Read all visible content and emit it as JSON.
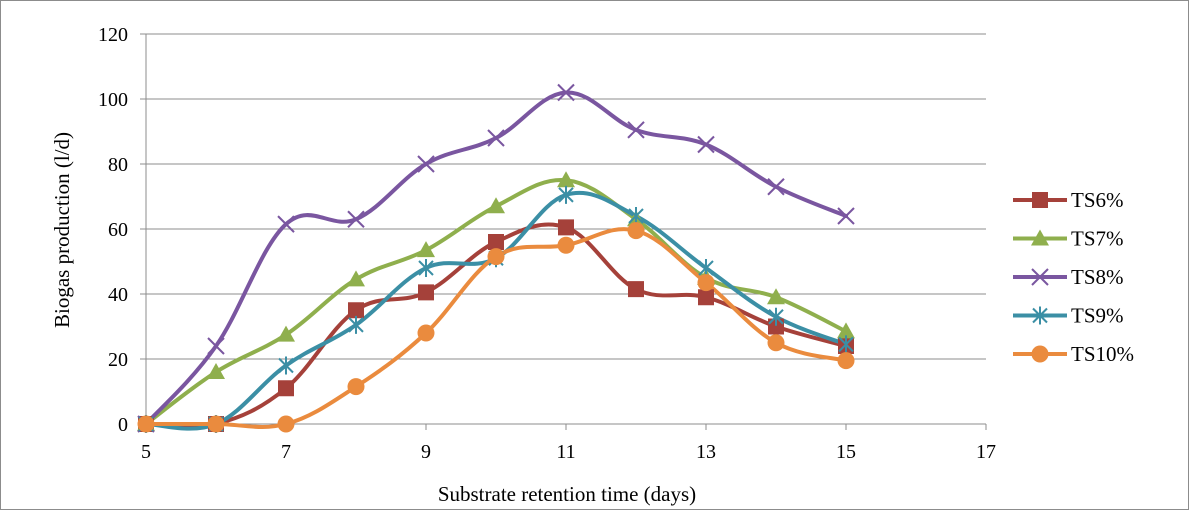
{
  "chart_data": {
    "type": "line",
    "title": "",
    "xlabel": "Substrate retention time (days)",
    "ylabel": "Biogas production (l/d)",
    "xlim": [
      5,
      17
    ],
    "ylim": [
      0,
      120
    ],
    "x_ticks": [
      5,
      7,
      9,
      11,
      13,
      15,
      17
    ],
    "y_ticks": [
      0,
      20,
      40,
      60,
      80,
      100,
      120
    ],
    "grid": "horizontal",
    "smooth": true,
    "legend_position": "right",
    "x": [
      5,
      6,
      7,
      8,
      9,
      10,
      11,
      12,
      13,
      14,
      15
    ],
    "series": [
      {
        "name": "TS6%",
        "color": "#a5413a",
        "marker": "square",
        "values": [
          0,
          0,
          11,
          35,
          40.5,
          56,
          60.5,
          41.5,
          39,
          30,
          24
        ]
      },
      {
        "name": "TS7%",
        "color": "#8faf4d",
        "marker": "triangle",
        "values": [
          0,
          16,
          27.5,
          44.5,
          53.5,
          67,
          75,
          63,
          45,
          39,
          28.5
        ]
      },
      {
        "name": "TS8%",
        "color": "#7a56a0",
        "marker": "x",
        "values": [
          0,
          24,
          61.5,
          63,
          80,
          88,
          102,
          90.5,
          86,
          73,
          64
        ]
      },
      {
        "name": "TS9%",
        "color": "#3b8fa5",
        "marker": "asterisk",
        "values": [
          0,
          0,
          18,
          30.5,
          48,
          51,
          70.5,
          64,
          48,
          33,
          24.5
        ]
      },
      {
        "name": "TS10%",
        "color": "#ea8b3e",
        "marker": "circle",
        "values": [
          0,
          0,
          0,
          11.5,
          28,
          51.5,
          55,
          59.5,
          43.5,
          25,
          19.5
        ]
      }
    ]
  }
}
